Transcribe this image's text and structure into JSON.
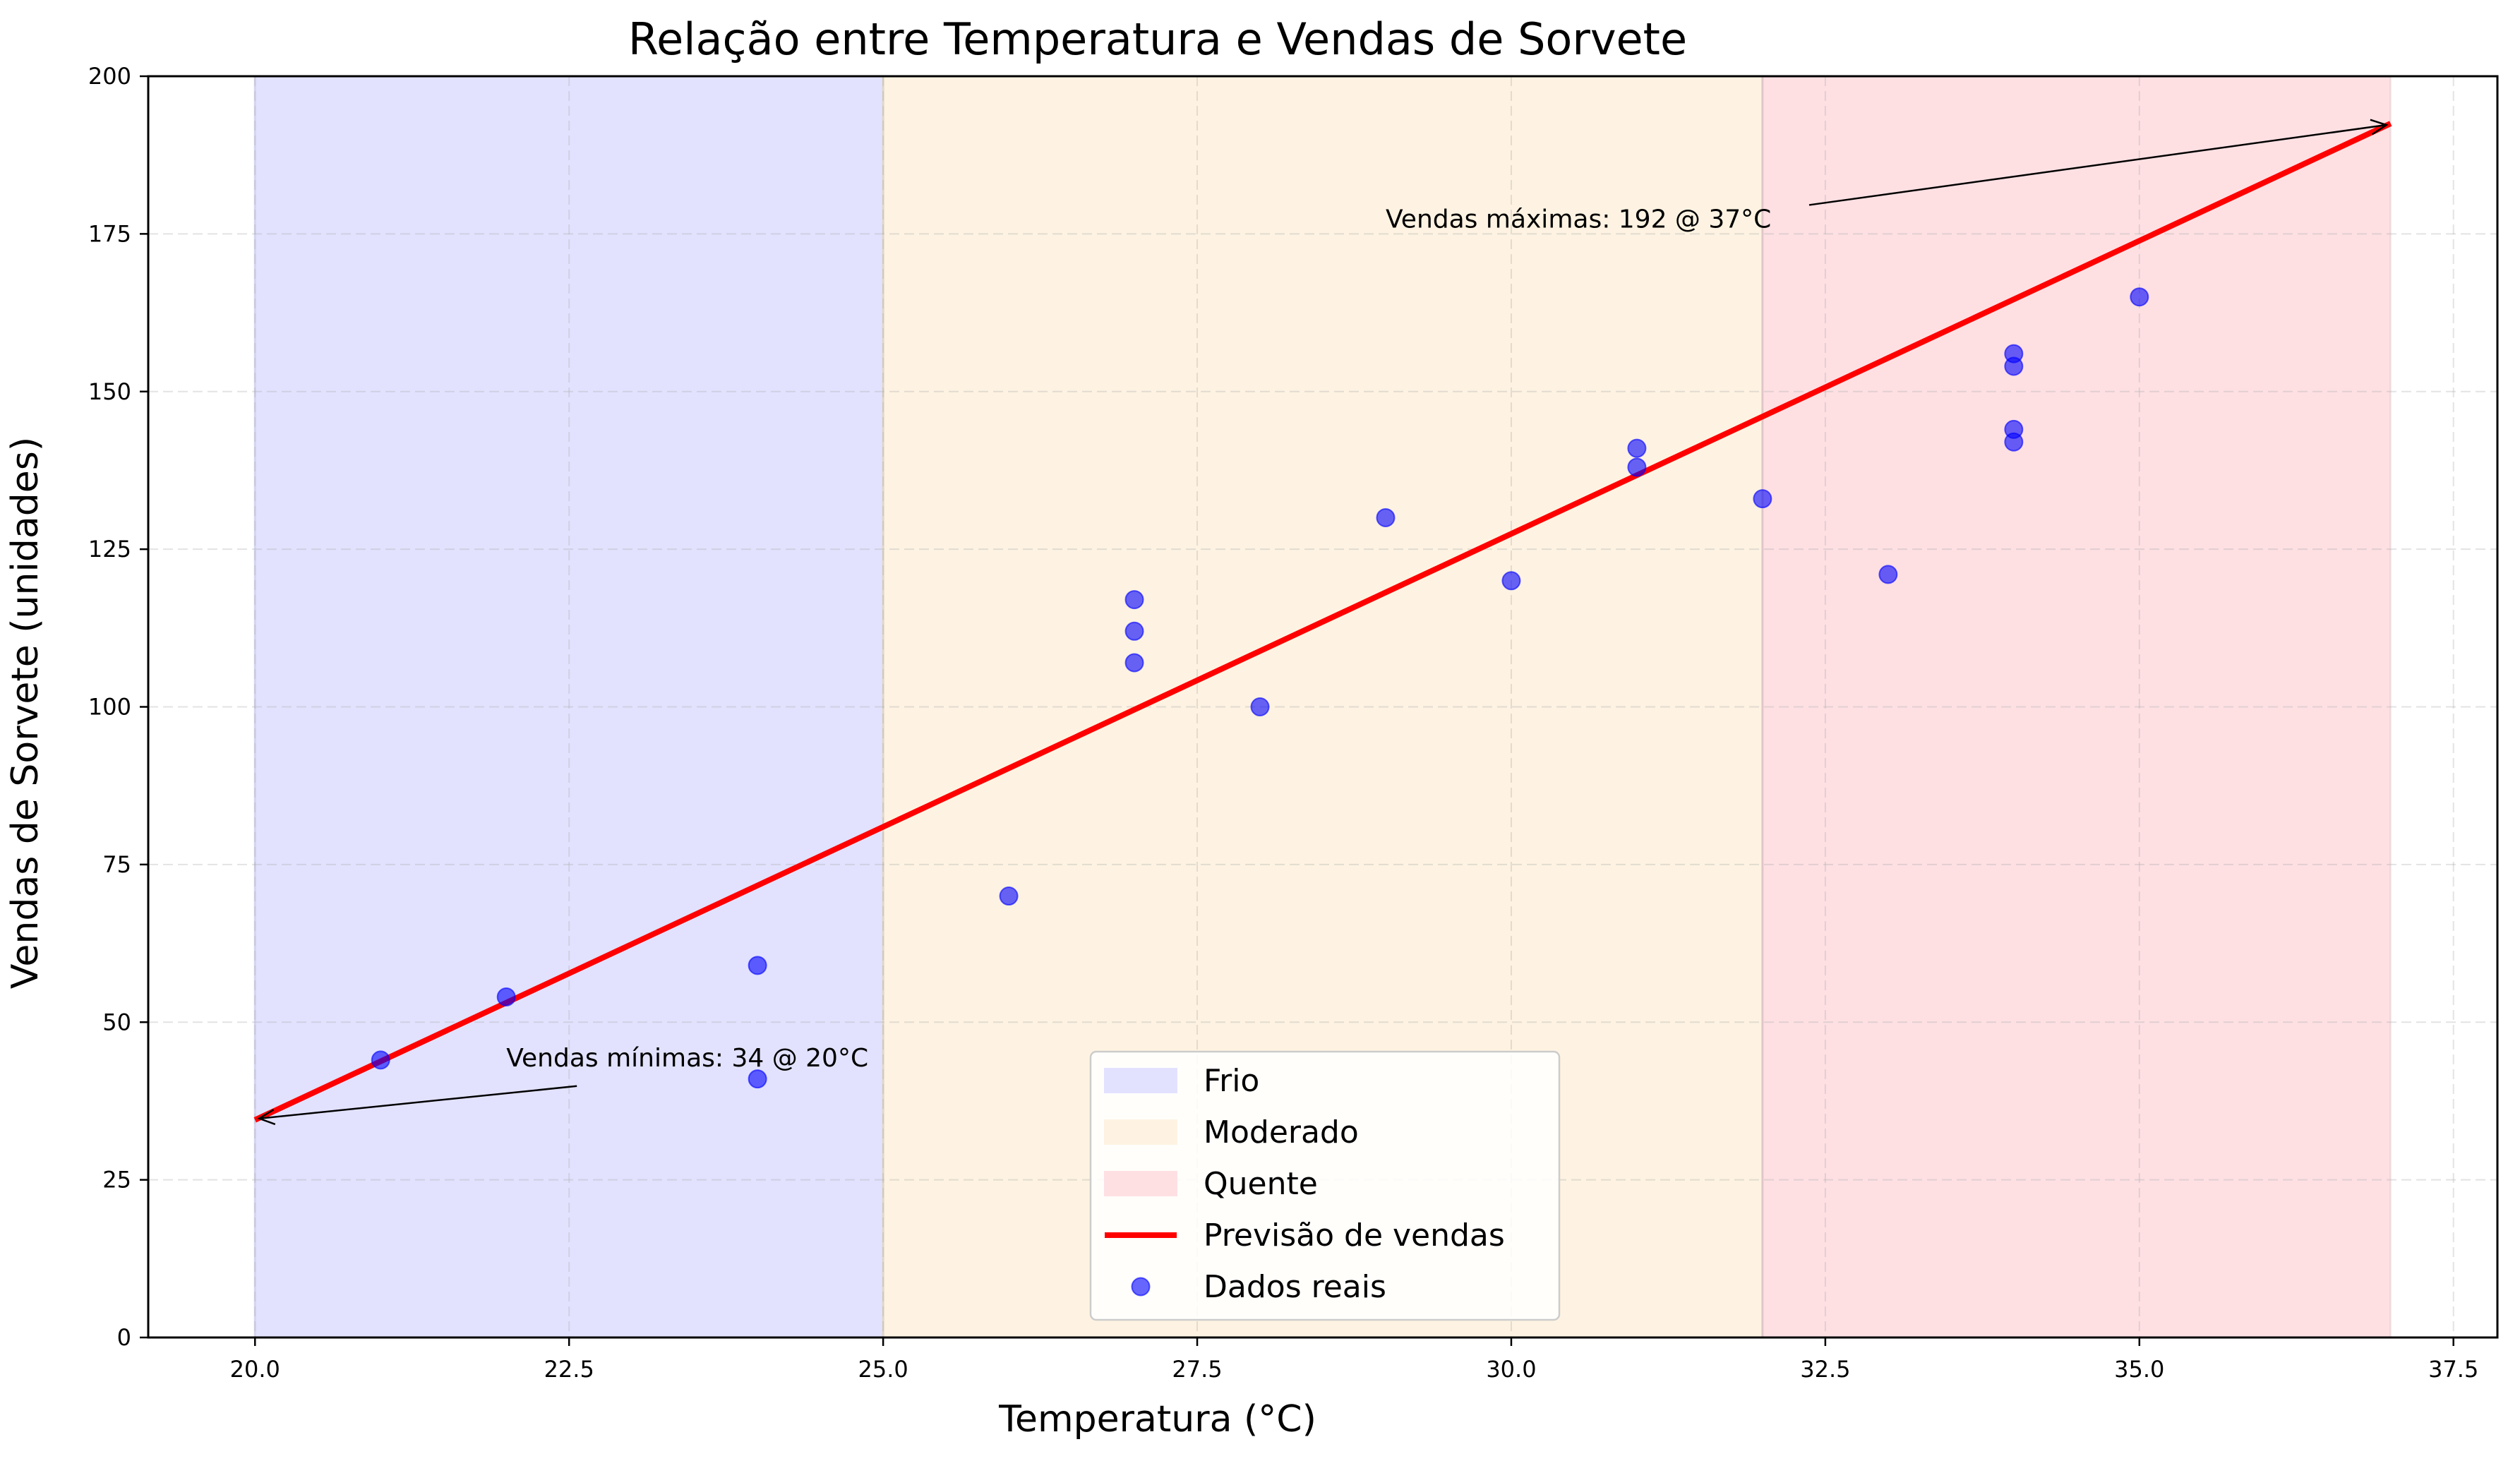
{
  "chart_data": {
    "type": "scatter",
    "title": "Relação entre Temperatura e Vendas de Sorvete",
    "xlabel": "Temperatura (°C)",
    "ylabel": "Vendas de Sorvete (unidades)",
    "xlim": [
      19.15,
      37.85
    ],
    "ylim": [
      0,
      200
    ],
    "xticks": [
      20.0,
      22.5,
      25.0,
      27.5,
      30.0,
      32.5,
      35.0,
      37.5
    ],
    "xtick_labels": [
      "20.0",
      "22.5",
      "25.0",
      "27.5",
      "30.0",
      "32.5",
      "35.0",
      "37.5"
    ],
    "yticks": [
      0,
      25,
      50,
      75,
      100,
      125,
      150,
      175,
      200
    ],
    "ytick_labels": [
      "0",
      "25",
      "50",
      "75",
      "100",
      "125",
      "150",
      "175",
      "200"
    ],
    "grid": true,
    "legend_position": "bottom-center",
    "regions": [
      {
        "name": "Frio",
        "x_start": 20,
        "x_end": 25,
        "color": "#e2e2ff"
      },
      {
        "name": "Moderado",
        "x_start": 25,
        "x_end": 32,
        "color": "#fef3e2"
      },
      {
        "name": "Quente",
        "x_start": 32,
        "x_end": 37,
        "color": "#fee0e3"
      }
    ],
    "series": [
      {
        "name": "Previsão de vendas",
        "type": "line",
        "color": "#ff0000",
        "x": [
          20,
          37
        ],
        "y": [
          34.5,
          192.5
        ]
      },
      {
        "name": "Dados reais",
        "type": "scatter",
        "color": "#0000ff",
        "x": [
          21,
          22,
          24,
          24,
          26,
          27,
          27,
          27,
          28,
          29,
          30,
          31,
          31,
          32,
          33,
          34,
          34,
          34,
          34,
          35
        ],
        "y": [
          44,
          54,
          41,
          59,
          70,
          107,
          112,
          117,
          100,
          130,
          120,
          138,
          141,
          133,
          121,
          142,
          144,
          154,
          156,
          165
        ]
      }
    ],
    "annotations": [
      {
        "text": "Vendas mínimas: 34 @ 20°C",
        "point": [
          20,
          34.5
        ],
        "text_pos": [
          22,
          43
        ]
      },
      {
        "text": "Vendas máximas: 192 @ 37°C",
        "point": [
          37,
          192.5
        ],
        "text_pos": [
          29,
          176
        ]
      }
    ]
  }
}
